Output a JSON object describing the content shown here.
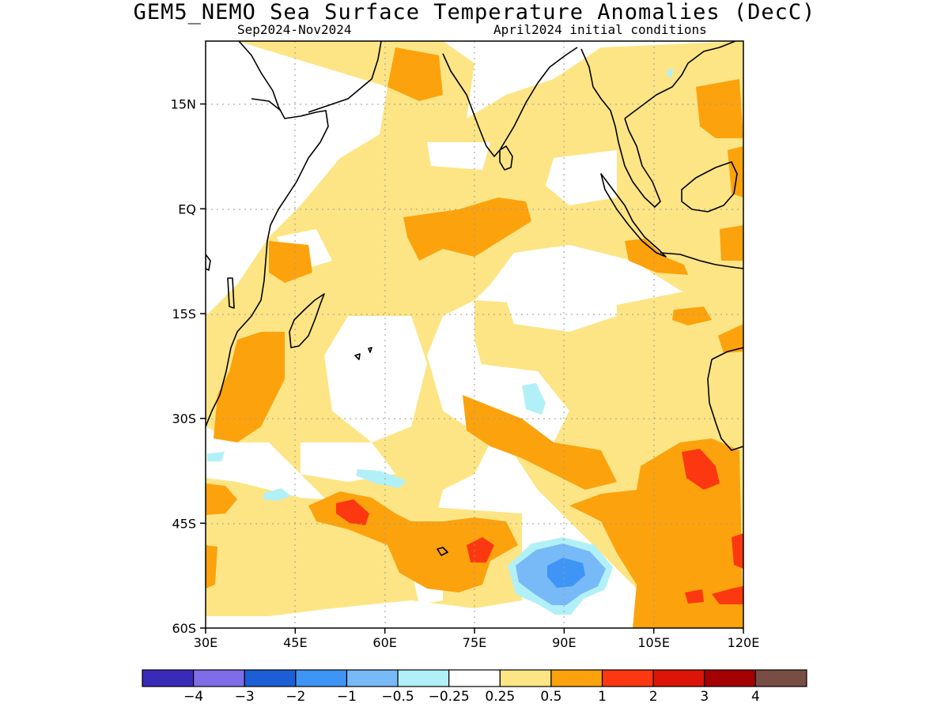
{
  "title": "GEM5_NEMO Sea Surface Temperature Anomalies (DecC)",
  "subtitle_left": "Sep2024-Nov2024",
  "subtitle_right": "April2024 initial conditions",
  "map": {
    "lon_range": [
      30,
      120
    ],
    "lat_range": [
      -60,
      24
    ],
    "lon_ticks": [
      {
        "value": 30,
        "label": "30E"
      },
      {
        "value": 45,
        "label": "45E"
      },
      {
        "value": 60,
        "label": "60E"
      },
      {
        "value": 75,
        "label": "75E"
      },
      {
        "value": 90,
        "label": "90E"
      },
      {
        "value": 105,
        "label": "105E"
      },
      {
        "value": 120,
        "label": "120E"
      }
    ],
    "lat_ticks": [
      {
        "value": 15,
        "label": "15N"
      },
      {
        "value": 0,
        "label": "EQ"
      },
      {
        "value": -15,
        "label": "15S"
      },
      {
        "value": -30,
        "label": "30S"
      },
      {
        "value": -45,
        "label": "45S"
      },
      {
        "value": -60,
        "label": "60S"
      }
    ],
    "grid": true
  },
  "colorbar": {
    "colors": [
      "#3a2ab8",
      "#7f6de8",
      "#1c5ed6",
      "#3f95f5",
      "#78b9f8",
      "#b2f0f8",
      "#ffffff",
      "#fde585",
      "#fca20c",
      "#fc3810",
      "#dc1508",
      "#a50002",
      "#774d44"
    ],
    "labels": [
      "−4",
      "−3",
      "−2",
      "−1",
      "−0.5",
      "−0.25",
      "0.25",
      "0.5",
      "1",
      "2",
      "3",
      "4"
    ]
  }
}
